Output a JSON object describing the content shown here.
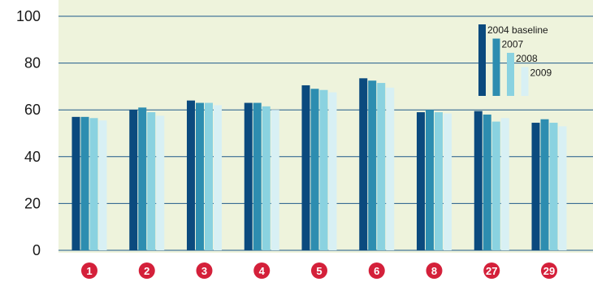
{
  "chart_data": {
    "type": "bar",
    "categories": [
      "1",
      "2",
      "3",
      "4",
      "5",
      "6",
      "8",
      "27",
      "29"
    ],
    "series": [
      {
        "name": "2004 baseline",
        "color": "#0b4a7e",
        "values": [
          57,
          60,
          64,
          63,
          70.5,
          73.5,
          59,
          59.5,
          54.5
        ]
      },
      {
        "name": "2007",
        "color": "#2d8db0",
        "values": [
          57,
          61,
          63,
          63,
          69,
          72.5,
          60,
          58,
          56
        ]
      },
      {
        "name": "2008",
        "color": "#8ad2e0",
        "values": [
          56.5,
          59,
          63,
          61.5,
          68.5,
          71.5,
          59,
          55,
          54.5
        ]
      },
      {
        "name": "2009",
        "color": "#d8f0f4",
        "values": [
          55.5,
          57.5,
          62,
          60,
          67.5,
          69.5,
          58.5,
          56.5,
          53
        ]
      }
    ],
    "ylim": [
      0,
      100
    ],
    "yticks": [
      "0",
      "20",
      "40",
      "60",
      "80",
      "100"
    ],
    "grid": true,
    "legend_position": "top-right",
    "colors": {
      "plot_background": "#eef3dc",
      "gridline": "#1f5a8a",
      "category_marker": "#d4203a"
    }
  }
}
